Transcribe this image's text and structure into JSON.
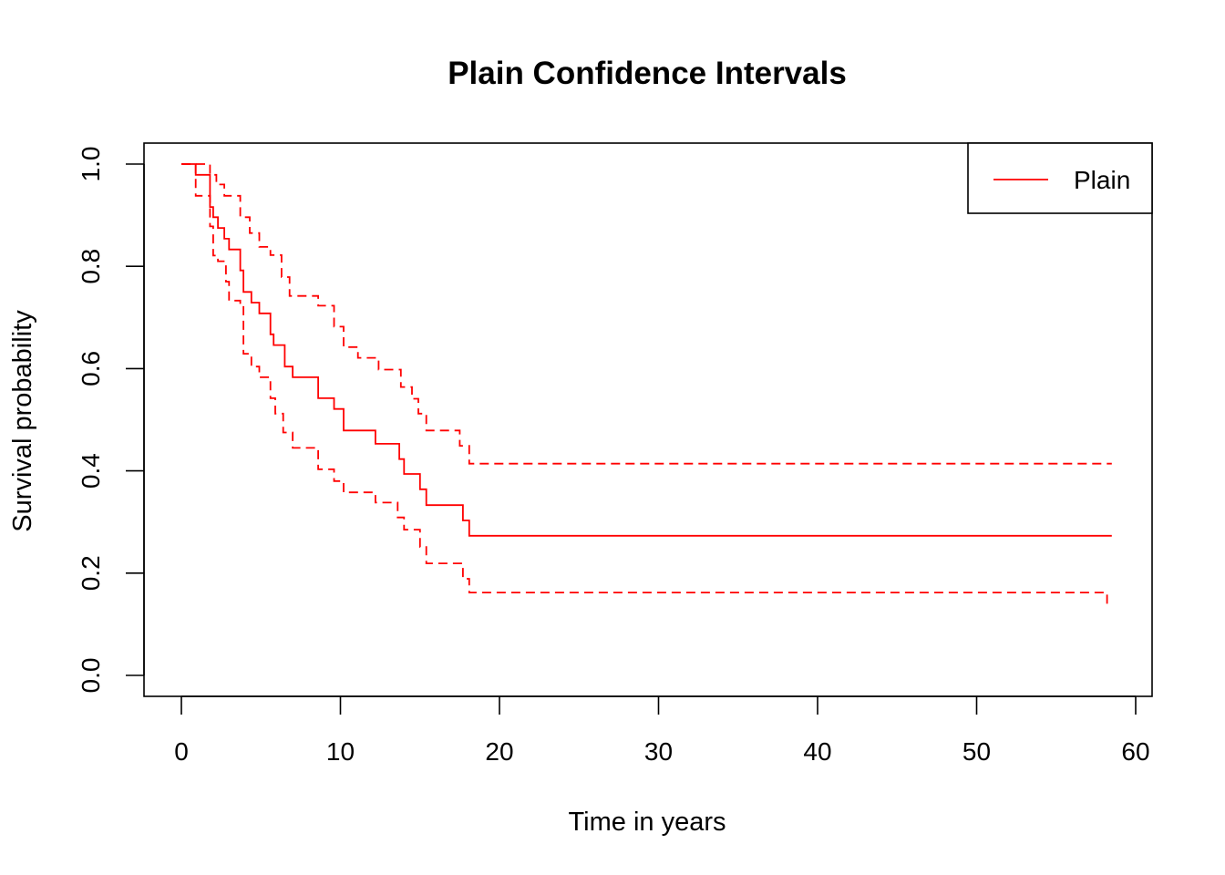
{
  "chart_data": {
    "type": "line",
    "title": "Plain Confidence Intervals",
    "xlabel": "Time in years",
    "ylabel": "Survival probability",
    "xlim": [
      0,
      60
    ],
    "ylim": [
      0,
      1
    ],
    "x_ticks": [
      0,
      10,
      20,
      30,
      40,
      50,
      60
    ],
    "x_tick_labels": [
      "0",
      "10",
      "20",
      "30",
      "40",
      "50",
      "60"
    ],
    "y_ticks": [
      0,
      0.2,
      0.4,
      0.6,
      0.8,
      1.0
    ],
    "y_tick_labels": [
      "0.0",
      "0.2",
      "0.4",
      "0.6",
      "0.8",
      "1.0"
    ],
    "grid": false,
    "legend": {
      "position": "top-right",
      "entries": [
        "Plain"
      ]
    },
    "color": "#ff0000",
    "series": [
      {
        "name": "Plain",
        "role": "estimate",
        "style": "solid",
        "x": [
          0,
          0.9,
          1.8,
          2.0,
          2.3,
          2.7,
          3.0,
          3.7,
          3.9,
          4.4,
          4.9,
          5.6,
          5.8,
          6.5,
          7.0,
          8.6,
          9.6,
          10.2,
          12.2,
          13.7,
          14.0,
          15.0,
          15.4,
          17.7,
          18.1,
          58.5
        ],
        "y": [
          1.0,
          0.979,
          0.916,
          0.896,
          0.875,
          0.854,
          0.833,
          0.792,
          0.75,
          0.729,
          0.708,
          0.667,
          0.646,
          0.604,
          0.583,
          0.542,
          0.521,
          0.479,
          0.453,
          0.423,
          0.394,
          0.364,
          0.333,
          0.303,
          0.273,
          0.273
        ]
      },
      {
        "name": "",
        "role": "upper",
        "style": "dashed",
        "x": [
          0,
          1.8,
          2.2,
          2.7,
          3.7,
          4.3,
          4.9,
          5.6,
          6.3,
          6.8,
          8.6,
          9.6,
          10.2,
          11.1,
          12.4,
          13.8,
          14.5,
          14.9,
          15.4,
          17.5,
          18.1,
          58.5
        ],
        "y": [
          1.0,
          0.979,
          0.96,
          0.938,
          0.896,
          0.865,
          0.838,
          0.822,
          0.779,
          0.742,
          0.723,
          0.682,
          0.642,
          0.621,
          0.598,
          0.564,
          0.541,
          0.512,
          0.479,
          0.449,
          0.414,
          0.414
        ]
      },
      {
        "name": "",
        "role": "lower",
        "style": "dashed",
        "x": [
          0,
          0.9,
          1.8,
          2.0,
          2.3,
          2.8,
          3.0,
          3.7,
          3.9,
          4.4,
          4.9,
          5.6,
          5.9,
          6.4,
          7.0,
          8.6,
          9.6,
          10.2,
          12.2,
          13.6,
          14.0,
          15.0,
          15.4,
          17.7,
          18.1,
          58.2
        ],
        "y": [
          1.0,
          0.938,
          0.878,
          0.821,
          0.81,
          0.77,
          0.733,
          0.725,
          0.629,
          0.604,
          0.583,
          0.542,
          0.512,
          0.475,
          0.445,
          0.403,
          0.38,
          0.358,
          0.338,
          0.309,
          0.285,
          0.251,
          0.219,
          0.189,
          0.162,
          0.132
        ]
      }
    ]
  }
}
